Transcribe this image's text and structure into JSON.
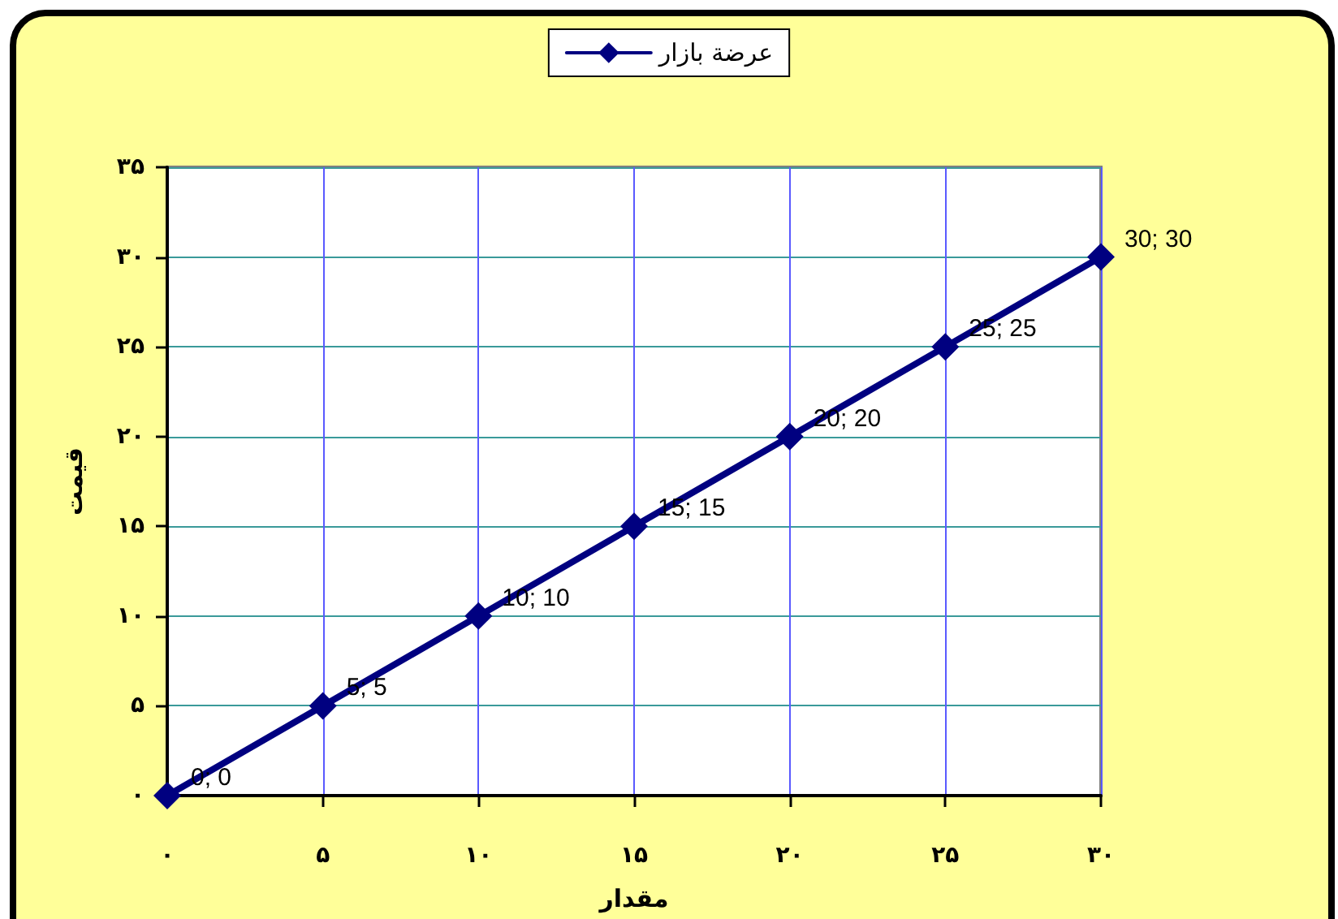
{
  "chart_data": {
    "type": "line",
    "xlabel": "مقدار",
    "ylabel": "قیمت",
    "x": [
      0,
      5,
      10,
      15,
      20,
      25,
      30
    ],
    "series": [
      {
        "name": "عرضة بازار",
        "color": "#000080",
        "values": [
          0,
          5,
          10,
          15,
          20,
          25,
          30
        ],
        "value_labels": [
          "0; 0",
          "5; 5",
          "10; 10",
          "15; 15",
          "20; 20",
          "25; 25",
          "30; 30"
        ]
      }
    ],
    "xlim": [
      0,
      30
    ],
    "xticks": [
      {
        "value": 0,
        "label": "۰"
      },
      {
        "value": 5,
        "label": "۵"
      },
      {
        "value": 10,
        "label": "۱۰"
      },
      {
        "value": 15,
        "label": "۱۵"
      },
      {
        "value": 20,
        "label": "۲۰"
      },
      {
        "value": 25,
        "label": "۲۵"
      },
      {
        "value": 30,
        "label": "۳۰"
      }
    ],
    "ylim": [
      0,
      35
    ],
    "yticks": [
      {
        "value": 0,
        "label": "۰"
      },
      {
        "value": 5,
        "label": "۵"
      },
      {
        "value": 10,
        "label": "۱۰"
      },
      {
        "value": 15,
        "label": "۱۵"
      },
      {
        "value": 20,
        "label": "۲۰"
      },
      {
        "value": 25,
        "label": "۲۵"
      },
      {
        "value": 30,
        "label": "۳۰"
      },
      {
        "value": 35,
        "label": "۳۵"
      }
    ],
    "grid": true,
    "legend": "top",
    "marker": "diamond",
    "line_style": "solid"
  }
}
